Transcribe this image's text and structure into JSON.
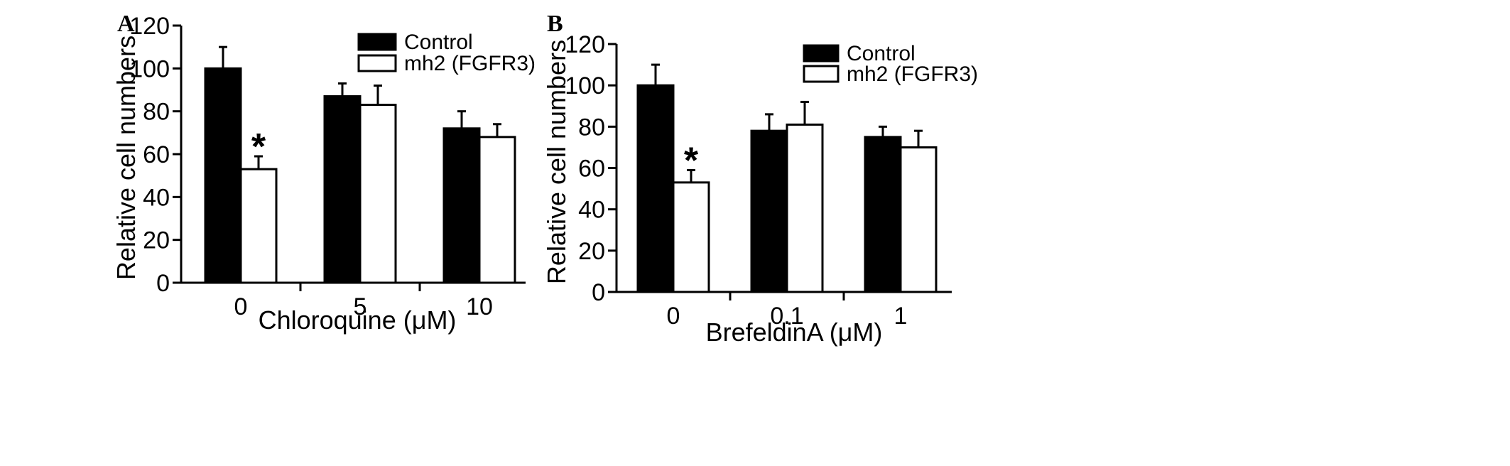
{
  "chart_data": [
    {
      "type": "bar",
      "panel": "A",
      "categories": [
        "0",
        "5",
        "10"
      ],
      "series": [
        {
          "name": "Control",
          "values": [
            100,
            87,
            72
          ],
          "errors": [
            10,
            6,
            8
          ],
          "color": "#000000"
        },
        {
          "name": "mh2 (FGFR3)",
          "values": [
            53,
            83,
            68
          ],
          "errors": [
            6,
            9,
            6
          ],
          "color": "#ffffff"
        }
      ],
      "annotations": [
        {
          "text": "*",
          "series": 1,
          "category": 0
        }
      ],
      "xlabel": "Chloroquine (μM)",
      "ylabel": "Relative cell numbers",
      "ylim": [
        0,
        120
      ],
      "yticks": [
        "0",
        "20",
        "40",
        "60",
        "80",
        "100",
        "120"
      ],
      "grid": false,
      "legend": "top-right"
    },
    {
      "type": "bar",
      "panel": "B",
      "categories": [
        "0",
        "0.1",
        "1"
      ],
      "series": [
        {
          "name": "Control",
          "values": [
            100,
            78,
            75
          ],
          "errors": [
            10,
            8,
            5
          ],
          "color": "#000000"
        },
        {
          "name": "mh2 (FGFR3)",
          "values": [
            53,
            81,
            70
          ],
          "errors": [
            6,
            11,
            8
          ],
          "color": "#ffffff"
        }
      ],
      "annotations": [
        {
          "text": "*",
          "series": 1,
          "category": 0
        }
      ],
      "xlabel": "BrefeldinA (μM)",
      "ylabel": "Relative cell numbers",
      "ylim": [
        0,
        120
      ],
      "yticks": [
        "0",
        "20",
        "40",
        "60",
        "80",
        "100",
        "120"
      ],
      "grid": false,
      "legend": "top-right"
    }
  ]
}
